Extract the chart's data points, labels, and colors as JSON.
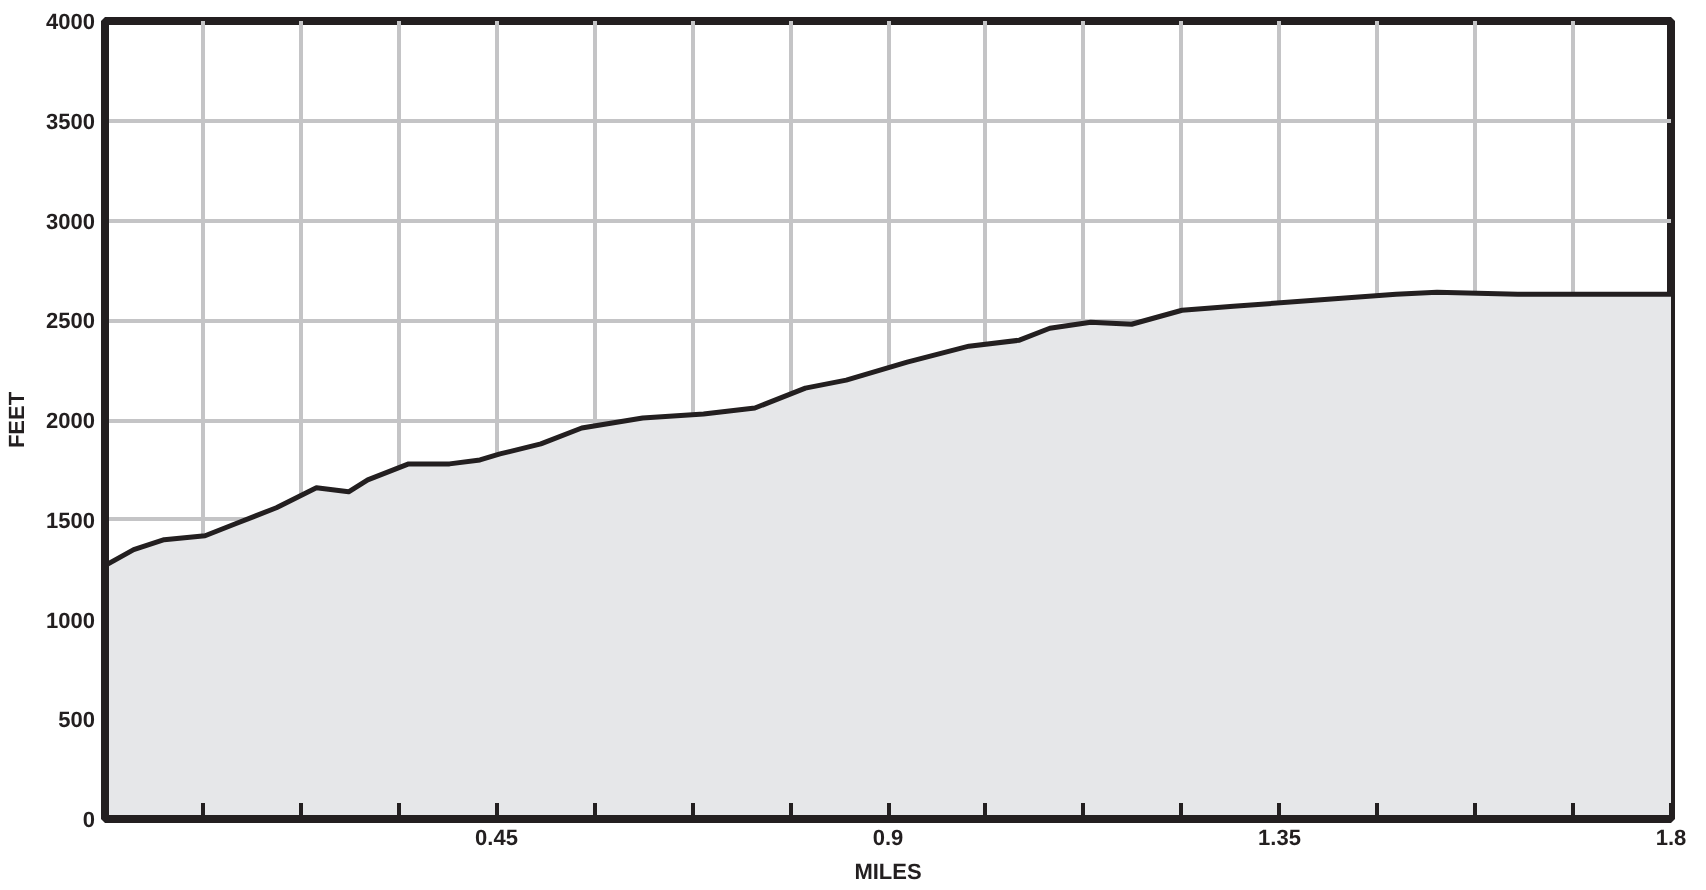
{
  "chart_data": {
    "type": "area",
    "xlabel": "MILES",
    "ylabel": "FEET",
    "x": [
      0,
      0.033,
      0.068,
      0.115,
      0.15,
      0.197,
      0.243,
      0.28,
      0.302,
      0.349,
      0.396,
      0.431,
      0.454,
      0.501,
      0.548,
      0.618,
      0.688,
      0.747,
      0.805,
      0.852,
      0.922,
      0.993,
      1.051,
      1.086,
      1.133,
      1.18,
      1.238,
      1.297,
      1.39,
      1.484,
      1.531,
      1.624,
      1.8
    ],
    "series": [
      {
        "color": "#231f20",
        "values": [
          1270,
          1350,
          1400,
          1420,
          1480,
          1560,
          1660,
          1640,
          1700,
          1780,
          1780,
          1800,
          1830,
          1880,
          1960,
          2010,
          2030,
          2060,
          2160,
          2200,
          2290,
          2370,
          2400,
          2460,
          2490,
          2480,
          2550,
          2570,
          2600,
          2630,
          2640,
          2630,
          2630
        ]
      }
    ],
    "xlim": [
      0,
      1.8
    ],
    "ylim": [
      0,
      4000
    ],
    "xticks": [
      {
        "value": 0.1125,
        "label": null
      },
      {
        "value": 0.225,
        "label": null
      },
      {
        "value": 0.3375,
        "label": null
      },
      {
        "value": 0.45,
        "label": "0.45"
      },
      {
        "value": 0.5625,
        "label": null
      },
      {
        "value": 0.675,
        "label": null
      },
      {
        "value": 0.7875,
        "label": null
      },
      {
        "value": 0.9,
        "label": "0.9"
      },
      {
        "value": 1.0125,
        "label": null
      },
      {
        "value": 1.125,
        "label": null
      },
      {
        "value": 1.2375,
        "label": null
      },
      {
        "value": 1.35,
        "label": "1.35"
      },
      {
        "value": 1.4625,
        "label": null
      },
      {
        "value": 1.575,
        "label": null
      },
      {
        "value": 1.6875,
        "label": null
      },
      {
        "value": 1.8,
        "label": "1.8"
      }
    ],
    "yticks": [
      0,
      500,
      1000,
      1500,
      2000,
      2500,
      3000,
      3500,
      4000
    ],
    "grid": true,
    "line_style": "solid"
  }
}
